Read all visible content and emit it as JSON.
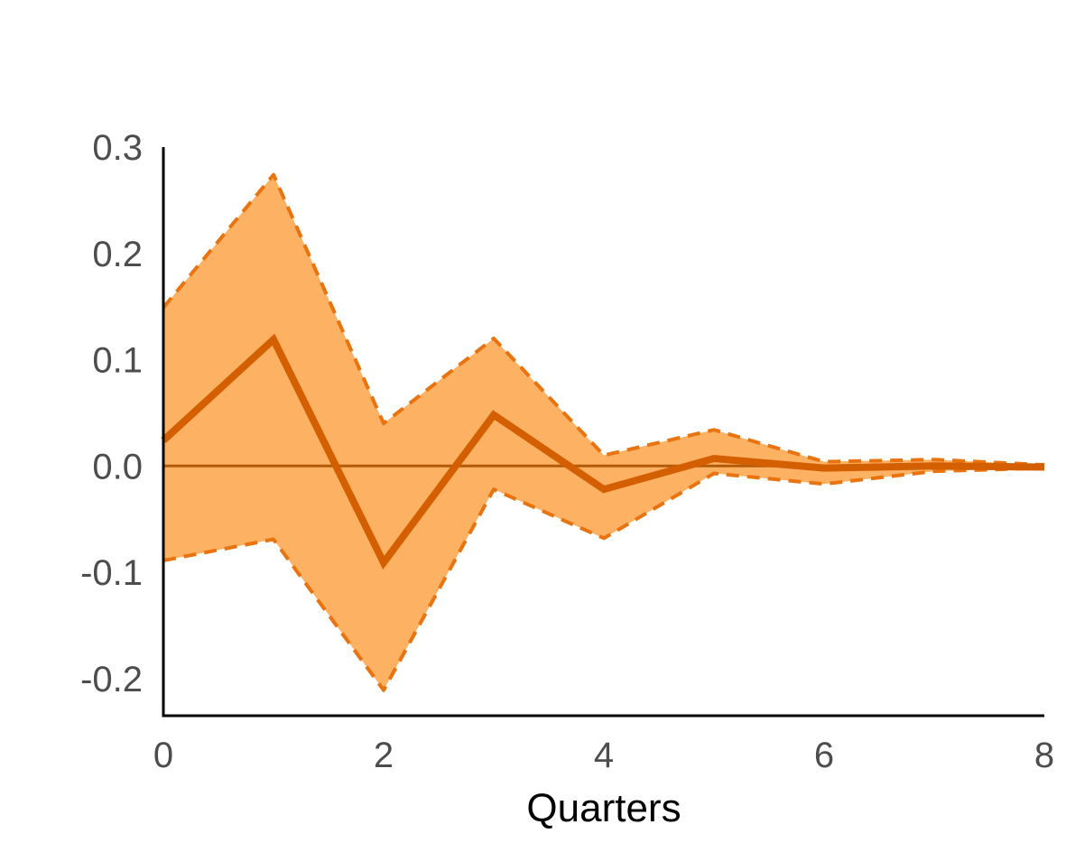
{
  "chart_data": {
    "type": "area",
    "title": "",
    "xlabel": "Quarters",
    "ylabel": "",
    "xlim": [
      0,
      8
    ],
    "ylim": [
      -0.235,
      0.3
    ],
    "x_ticks": [
      0,
      2,
      4,
      6,
      8
    ],
    "x_tick_labels": [
      "0",
      "2",
      "4",
      "6",
      "8"
    ],
    "y_ticks": [
      -0.2,
      -0.1,
      0.0,
      0.1,
      0.2,
      0.3
    ],
    "y_tick_labels": [
      "-0.2",
      "-0.1",
      "0.0",
      "0.1",
      "0.2",
      "0.3"
    ],
    "grid": false,
    "legend": "none",
    "x": [
      0,
      1,
      2,
      3,
      4,
      5,
      6,
      7,
      8
    ],
    "series": [
      {
        "role": "estimate",
        "style": "solid",
        "values": [
          0.024,
          0.119,
          -0.091,
          0.048,
          -0.022,
          0.007,
          -0.002,
          0.0,
          -0.001
        ]
      },
      {
        "role": "upper-bound",
        "style": "dashed",
        "values": [
          0.149,
          0.274,
          0.04,
          0.12,
          0.01,
          0.034,
          0.004,
          0.006,
          0.001
        ]
      },
      {
        "role": "lower-bound",
        "style": "dashed",
        "values": [
          -0.089,
          -0.069,
          -0.211,
          -0.022,
          -0.068,
          -0.007,
          -0.017,
          -0.005,
          -0.002
        ]
      }
    ],
    "reference_line": {
      "y": 0.0
    },
    "colors": {
      "band_fill": "#fdb163",
      "line": "#d35f00",
      "bound_line": "#e8730f",
      "zero_line": "#b35a0a",
      "axis": "#000000"
    }
  }
}
